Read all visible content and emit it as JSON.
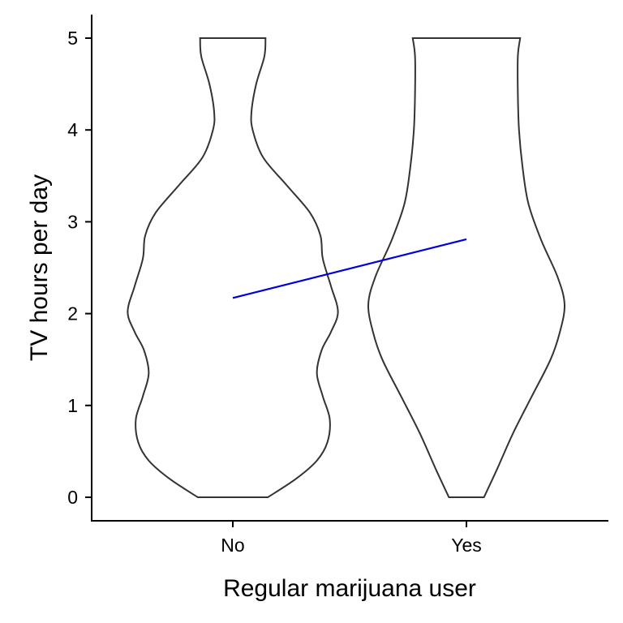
{
  "chart_data": {
    "type": "violin",
    "xlabel": "Regular marijuana user",
    "ylabel": "TV hours per day",
    "categories": [
      "No",
      "Yes"
    ],
    "ylim": [
      0,
      5
    ],
    "yticks": [
      0,
      1,
      2,
      3,
      4,
      5
    ],
    "grid": false,
    "legend": "none",
    "violins": [
      {
        "category": "No",
        "outline_color": "#333333",
        "half_width": [
          {
            "y": 0.0,
            "w": 0.15
          },
          {
            "y": 0.2,
            "w": 0.27
          },
          {
            "y": 0.4,
            "w": 0.36
          },
          {
            "y": 0.6,
            "w": 0.405
          },
          {
            "y": 0.85,
            "w": 0.415
          },
          {
            "y": 1.1,
            "w": 0.385
          },
          {
            "y": 1.35,
            "w": 0.36
          },
          {
            "y": 1.6,
            "w": 0.38
          },
          {
            "y": 1.8,
            "w": 0.42
          },
          {
            "y": 2.02,
            "w": 0.45
          },
          {
            "y": 2.3,
            "w": 0.42
          },
          {
            "y": 2.6,
            "w": 0.385
          },
          {
            "y": 2.85,
            "w": 0.375
          },
          {
            "y": 3.1,
            "w": 0.33
          },
          {
            "y": 3.4,
            "w": 0.23
          },
          {
            "y": 3.7,
            "w": 0.13
          },
          {
            "y": 4.0,
            "w": 0.085
          },
          {
            "y": 4.2,
            "w": 0.08
          },
          {
            "y": 4.5,
            "w": 0.1
          },
          {
            "y": 4.8,
            "w": 0.135
          },
          {
            "y": 5.0,
            "w": 0.14
          }
        ]
      },
      {
        "category": "Yes",
        "outline_color": "#333333",
        "half_width": [
          {
            "y": 0.0,
            "w": 0.075
          },
          {
            "y": 0.3,
            "w": 0.13
          },
          {
            "y": 0.7,
            "w": 0.2
          },
          {
            "y": 1.1,
            "w": 0.28
          },
          {
            "y": 1.5,
            "w": 0.36
          },
          {
            "y": 1.8,
            "w": 0.4
          },
          {
            "y": 2.1,
            "w": 0.42
          },
          {
            "y": 2.4,
            "w": 0.39
          },
          {
            "y": 2.8,
            "w": 0.32
          },
          {
            "y": 3.2,
            "w": 0.265
          },
          {
            "y": 3.6,
            "w": 0.24
          },
          {
            "y": 4.0,
            "w": 0.225
          },
          {
            "y": 4.4,
            "w": 0.22
          },
          {
            "y": 4.8,
            "w": 0.22
          },
          {
            "y": 5.0,
            "w": 0.23
          }
        ]
      }
    ],
    "trend_line": {
      "color": "#0000dd",
      "points": [
        {
          "x": "No",
          "y": 2.17
        },
        {
          "x": "Yes",
          "y": 2.81
        }
      ]
    }
  }
}
